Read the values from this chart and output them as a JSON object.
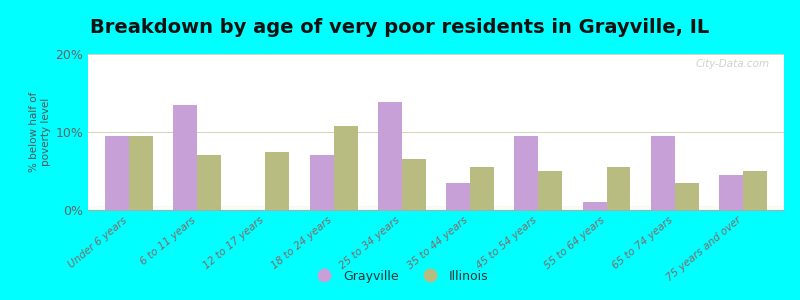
{
  "title": "Breakdown by age of very poor residents in Grayville, IL",
  "ylabel": "% below half of\npoverty level",
  "categories": [
    "Under 6 years",
    "6 to 11 years",
    "12 to 17 years",
    "18 to 24 years",
    "25 to 34 years",
    "35 to 44 years",
    "45 to 54 years",
    "55 to 64 years",
    "65 to 74 years",
    "75 years and over"
  ],
  "grayville_values": [
    9.5,
    13.5,
    0,
    7.0,
    13.8,
    3.5,
    9.5,
    1.0,
    9.5,
    4.5
  ],
  "illinois_values": [
    9.5,
    7.0,
    7.5,
    10.8,
    6.5,
    5.5,
    5.0,
    5.5,
    3.5,
    5.0
  ],
  "grayville_color": "#c8a0d8",
  "illinois_color": "#b8bc80",
  "ylim": [
    0,
    20
  ],
  "yticks": [
    0,
    10,
    20
  ],
  "ytick_labels": [
    "0%",
    "10%",
    "20%"
  ],
  "background_color": "#00ffff",
  "bar_width": 0.35,
  "title_fontsize": 14,
  "legend_labels": [
    "Grayville",
    "Illinois"
  ],
  "watermark": "City-Data.com"
}
